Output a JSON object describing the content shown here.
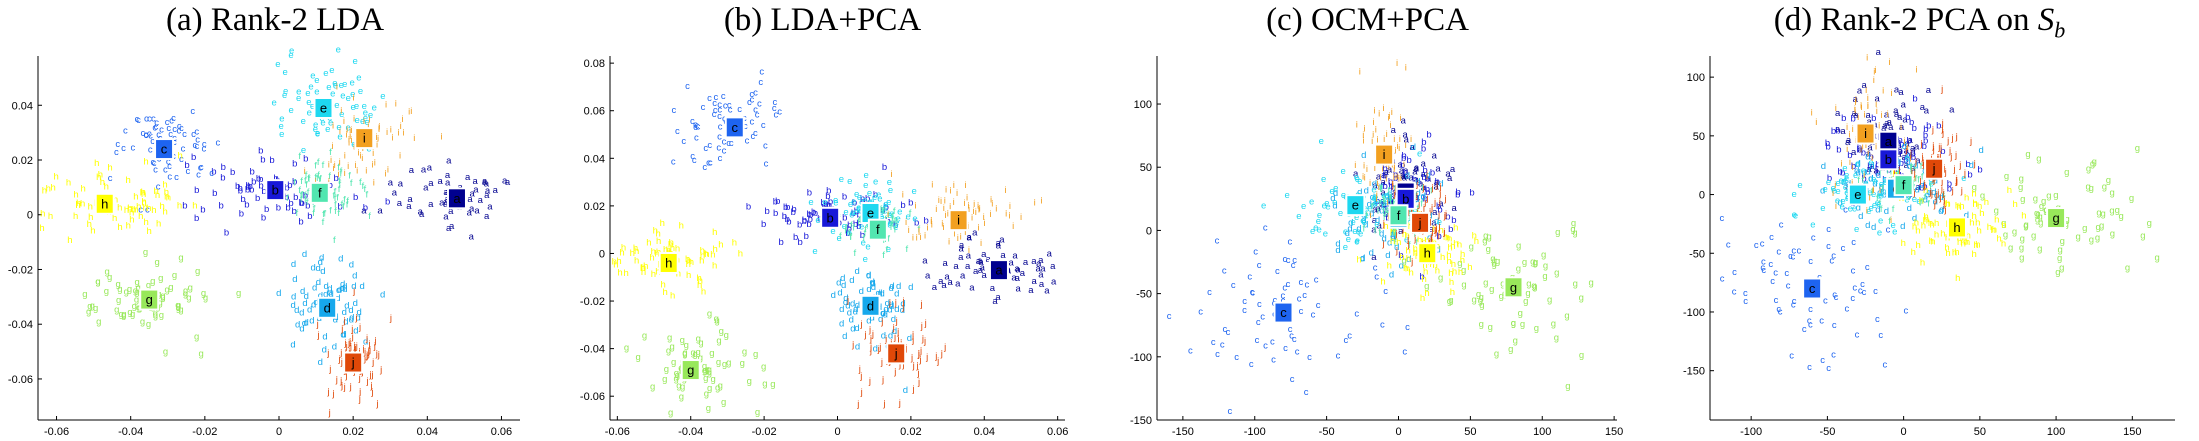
{
  "panels": [
    {
      "title": "(a) Rank-2 LDA"
    },
    {
      "title": "(b) LDA+PCA"
    },
    {
      "title": "(c) OCM+PCA"
    },
    {
      "title": "(d) Rank-2 PCA on S_b",
      "title_main": "(d) Rank-2 PCA on ",
      "title_var": "S",
      "title_sub": "b"
    }
  ],
  "class_colors": {
    "a": "#00008f",
    "b": "#1818d8",
    "c": "#1e64f0",
    "d": "#16a8ec",
    "e": "#1ed8f0",
    "f": "#52e6b0",
    "g": "#98e85a",
    "h": "#ffff00",
    "i": "#f2a020",
    "j": "#e04808"
  },
  "chart_data": [
    {
      "type": "scatter",
      "title": "(a) Rank-2 LDA",
      "xlim": [
        -0.065,
        0.065
      ],
      "ylim": [
        -0.075,
        0.058
      ],
      "xticks": [
        -0.06,
        -0.04,
        -0.02,
        0,
        0.02,
        0.04,
        0.06
      ],
      "xtick_labels": [
        "-0.06",
        "-0.04",
        "-0.02",
        "0",
        "0.02",
        "0.04",
        "0.06"
      ],
      "yticks": [
        -0.06,
        -0.04,
        -0.02,
        0,
        0.02,
        0.04
      ],
      "ytick_labels": [
        "-0.06",
        "-0.04",
        "-0.02",
        "0",
        "0.02",
        "0.04"
      ],
      "clusters": [
        {
          "label": "a",
          "center": [
            0.048,
            0.006
          ],
          "spread": [
            0.0095,
            0.006
          ]
        },
        {
          "label": "b",
          "center": [
            -0.001,
            0.009
          ],
          "spread": [
            0.011,
            0.006
          ]
        },
        {
          "label": "c",
          "center": [
            -0.031,
            0.024
          ],
          "spread": [
            0.0075,
            0.0075
          ]
        },
        {
          "label": "d",
          "center": [
            0.013,
            -0.034
          ],
          "spread": [
            0.0055,
            0.009
          ]
        },
        {
          "label": "e",
          "center": [
            0.012,
            0.039
          ],
          "spread": [
            0.0075,
            0.0085
          ]
        },
        {
          "label": "f",
          "center": [
            0.011,
            0.008
          ],
          "spread": [
            0.0055,
            0.0055
          ]
        },
        {
          "label": "g",
          "center": [
            -0.035,
            -0.031
          ],
          "spread": [
            0.0095,
            0.0065
          ]
        },
        {
          "label": "h",
          "center": [
            -0.047,
            0.004
          ],
          "spread": [
            0.011,
            0.0065
          ]
        },
        {
          "label": "i",
          "center": [
            0.023,
            0.028
          ],
          "spread": [
            0.0065,
            0.0085
          ]
        },
        {
          "label": "j",
          "center": [
            0.02,
            -0.054
          ],
          "spread": [
            0.0055,
            0.0085
          ]
        }
      ]
    },
    {
      "type": "scatter",
      "title": "(b) LDA+PCA",
      "xlim": [
        -0.062,
        0.062
      ],
      "ylim": [
        -0.07,
        0.083
      ],
      "xticks": [
        -0.06,
        -0.04,
        -0.02,
        0,
        0.02,
        0.04,
        0.06
      ],
      "xtick_labels": [
        "-0.06",
        "-0.04",
        "-0.02",
        "0",
        "0.02",
        "0.04",
        "0.06"
      ],
      "yticks": [
        -0.06,
        -0.04,
        -0.02,
        0,
        0.02,
        0.04,
        0.06,
        0.08
      ],
      "ytick_labels": [
        "-0.06",
        "-0.04",
        "-0.02",
        "0",
        "0.02",
        "0.04",
        "0.06",
        "0.08"
      ],
      "clusters": [
        {
          "label": "a",
          "center": [
            0.044,
            -0.007
          ],
          "spread": [
            0.0085,
            0.0065
          ]
        },
        {
          "label": "b",
          "center": [
            -0.002,
            0.015
          ],
          "spread": [
            0.0095,
            0.0065
          ]
        },
        {
          "label": "c",
          "center": [
            -0.028,
            0.053
          ],
          "spread": [
            0.0065,
            0.0095
          ]
        },
        {
          "label": "d",
          "center": [
            0.009,
            -0.022
          ],
          "spread": [
            0.0065,
            0.0085
          ]
        },
        {
          "label": "e",
          "center": [
            0.009,
            0.017
          ],
          "spread": [
            0.0065,
            0.0065
          ]
        },
        {
          "label": "f",
          "center": [
            0.011,
            0.01
          ],
          "spread": [
            0.0045,
            0.0045
          ]
        },
        {
          "label": "g",
          "center": [
            -0.04,
            -0.049
          ],
          "spread": [
            0.0085,
            0.0085
          ]
        },
        {
          "label": "h",
          "center": [
            -0.046,
            -0.004
          ],
          "spread": [
            0.0085,
            0.0065
          ]
        },
        {
          "label": "i",
          "center": [
            0.033,
            0.014
          ],
          "spread": [
            0.0085,
            0.0065
          ]
        },
        {
          "label": "j",
          "center": [
            0.016,
            -0.042
          ],
          "spread": [
            0.0055,
            0.0085
          ]
        }
      ]
    },
    {
      "type": "scatter",
      "title": "(c) OCM+PCA",
      "xlim": [
        -168,
        152
      ],
      "ylim": [
        -150,
        138
      ],
      "xticks": [
        -150,
        -100,
        -50,
        0,
        50,
        100,
        150
      ],
      "xtick_labels": [
        "-150",
        "-100",
        "-50",
        "0",
        "50",
        "100",
        "150"
      ],
      "yticks": [
        -150,
        -100,
        -50,
        0,
        50,
        100
      ],
      "ytick_labels": [
        "-150",
        "-100",
        "-50",
        "0",
        "50",
        "100"
      ],
      "clusters": [
        {
          "label": "a",
          "center": [
            5,
            30
          ],
          "spread": [
            16,
            22
          ]
        },
        {
          "label": "b",
          "center": [
            5,
            25
          ],
          "spread": [
            18,
            18
          ]
        },
        {
          "label": "c",
          "center": [
            -80,
            -65
          ],
          "spread": [
            32,
            28
          ]
        },
        {
          "label": "d",
          "center": [
            0,
            10
          ],
          "spread": [
            22,
            18
          ]
        },
        {
          "label": "e",
          "center": [
            -30,
            20
          ],
          "spread": [
            22,
            16
          ]
        },
        {
          "label": "f",
          "center": [
            0,
            12
          ],
          "spread": [
            11,
            11
          ]
        },
        {
          "label": "g",
          "center": [
            80,
            -45
          ],
          "spread": [
            30,
            24
          ]
        },
        {
          "label": "h",
          "center": [
            20,
            -18
          ],
          "spread": [
            18,
            16
          ]
        },
        {
          "label": "i",
          "center": [
            -10,
            60
          ],
          "spread": [
            11,
            30
          ]
        },
        {
          "label": "j",
          "center": [
            15,
            6
          ],
          "spread": [
            11,
            16
          ]
        }
      ]
    },
    {
      "type": "scatter",
      "title": "(d) Rank-2 PCA on S_b",
      "xlim": [
        -127,
        178
      ],
      "ylim": [
        -192,
        118
      ],
      "xticks": [
        -100,
        -50,
        0,
        50,
        100,
        150
      ],
      "xtick_labels": [
        "-100",
        "-50",
        "0",
        "50",
        "100",
        "150"
      ],
      "yticks": [
        -150,
        -100,
        -50,
        0,
        50,
        100
      ],
      "ytick_labels": [
        "-150",
        "-100",
        "-50",
        "0",
        "50",
        "100"
      ],
      "clusters": [
        {
          "label": "a",
          "center": [
            -10,
            45
          ],
          "spread": [
            16,
            22
          ]
        },
        {
          "label": "b",
          "center": [
            -10,
            30
          ],
          "spread": [
            20,
            20
          ]
        },
        {
          "label": "c",
          "center": [
            -60,
            -80
          ],
          "spread": [
            28,
            30
          ]
        },
        {
          "label": "d",
          "center": [
            -5,
            5
          ],
          "spread": [
            22,
            16
          ]
        },
        {
          "label": "e",
          "center": [
            -30,
            0
          ],
          "spread": [
            22,
            16
          ]
        },
        {
          "label": "f",
          "center": [
            0,
            8
          ],
          "spread": [
            11,
            11
          ]
        },
        {
          "label": "g",
          "center": [
            100,
            -20
          ],
          "spread": [
            32,
            20
          ]
        },
        {
          "label": "h",
          "center": [
            35,
            -28
          ],
          "spread": [
            18,
            16
          ]
        },
        {
          "label": "i",
          "center": [
            -25,
            52
          ],
          "spread": [
            15,
            30
          ]
        },
        {
          "label": "j",
          "center": [
            20,
            22
          ],
          "spread": [
            11,
            18
          ]
        }
      ]
    }
  ]
}
